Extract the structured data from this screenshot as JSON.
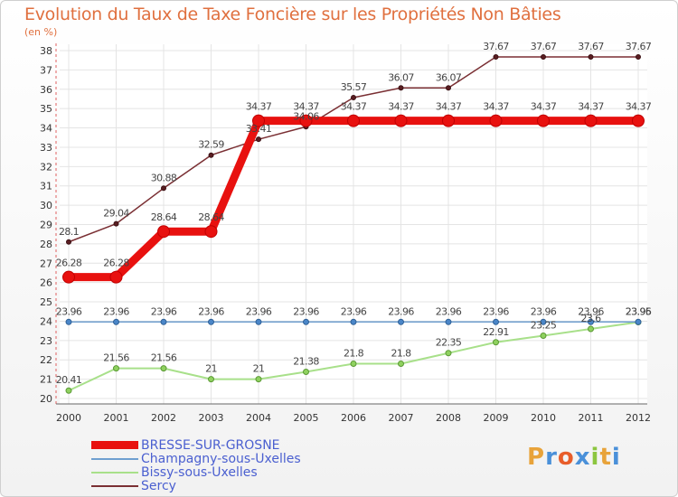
{
  "title": "Evolution du Taux de Taxe Foncière sur les Propriétés Non Bâties",
  "unit_label": "(en %)",
  "logo": {
    "letters": [
      "P",
      "r",
      "o",
      "x",
      "i",
      "t",
      "i"
    ],
    "colors": [
      "#e8a33a",
      "#4a90d9",
      "#e85d2a",
      "#4a90d9",
      "#8cc63f",
      "#e8a33a",
      "#4a90d9"
    ]
  },
  "chart_data": {
    "type": "line",
    "title": "Evolution du Taux de Taxe Foncière sur les Propriétés Non Bâties",
    "ylabel": "(en %)",
    "xlabel": "",
    "ylim": [
      20,
      38
    ],
    "yticks": [
      20,
      21,
      22,
      23,
      24,
      25,
      26,
      27,
      28,
      29,
      30,
      31,
      32,
      33,
      34,
      35,
      36,
      37,
      38
    ],
    "x": [
      "2000",
      "2001",
      "2002",
      "2003",
      "2004",
      "2005",
      "2006",
      "2007",
      "2008",
      "2009",
      "2010",
      "2011",
      "2012"
    ],
    "grid": true,
    "series": [
      {
        "name": "BRESSE-SUR-GROSNE",
        "color": "#e8110f",
        "width": 9,
        "values": [
          26.28,
          26.28,
          28.64,
          28.64,
          34.37,
          34.37,
          34.37,
          34.37,
          34.37,
          34.37,
          34.37,
          34.37,
          34.37
        ],
        "labels": [
          "26.28",
          "26.28",
          "28.64",
          "28.64",
          "34.37",
          "34.37",
          "34.37",
          "34.37",
          "34.37",
          "34.37",
          "34.37",
          "34.37",
          "34.37"
        ]
      },
      {
        "name": "Champagny-sous-Uxelles",
        "color": "#6f9fd0",
        "width": 1.5,
        "values": [
          23.96,
          23.96,
          23.96,
          23.96,
          23.96,
          23.96,
          23.96,
          23.96,
          23.96,
          23.96,
          23.96,
          23.96,
          23.96
        ],
        "labels": [
          "23.96",
          "23.96",
          "23.96",
          "23.96",
          "23.96",
          "23.96",
          "23.96",
          "23.96",
          "23.96",
          "23.96",
          "23.96",
          "23.96",
          "23.96"
        ]
      },
      {
        "name": "Bissy-sous-Uxelles",
        "color": "#a8e08a",
        "width": 2,
        "values": [
          20.41,
          21.56,
          21.56,
          21,
          21,
          21.38,
          21.8,
          21.8,
          22.35,
          22.91,
          23.25,
          23.6,
          23.95
        ],
        "labels": [
          "20.41",
          "21.56",
          "21.56",
          "21",
          "21",
          "21.38",
          "21.8",
          "21.8",
          "22.35",
          "22.91",
          "23.25",
          "23.6",
          "23.95"
        ]
      },
      {
        "name": "Sercy",
        "color": "#7a2f33",
        "width": 1.5,
        "values": [
          28.1,
          29.04,
          30.88,
          32.59,
          33.41,
          34.06,
          35.57,
          36.07,
          36.07,
          37.67,
          37.67,
          37.67,
          37.67
        ],
        "labels": [
          "28.1",
          "29.04",
          "30.88",
          "32.59",
          "33.41",
          "34.06",
          "35.57",
          "36.07",
          "36.07",
          "37.67",
          "37.67",
          "37.67",
          "37.67"
        ]
      }
    ]
  }
}
